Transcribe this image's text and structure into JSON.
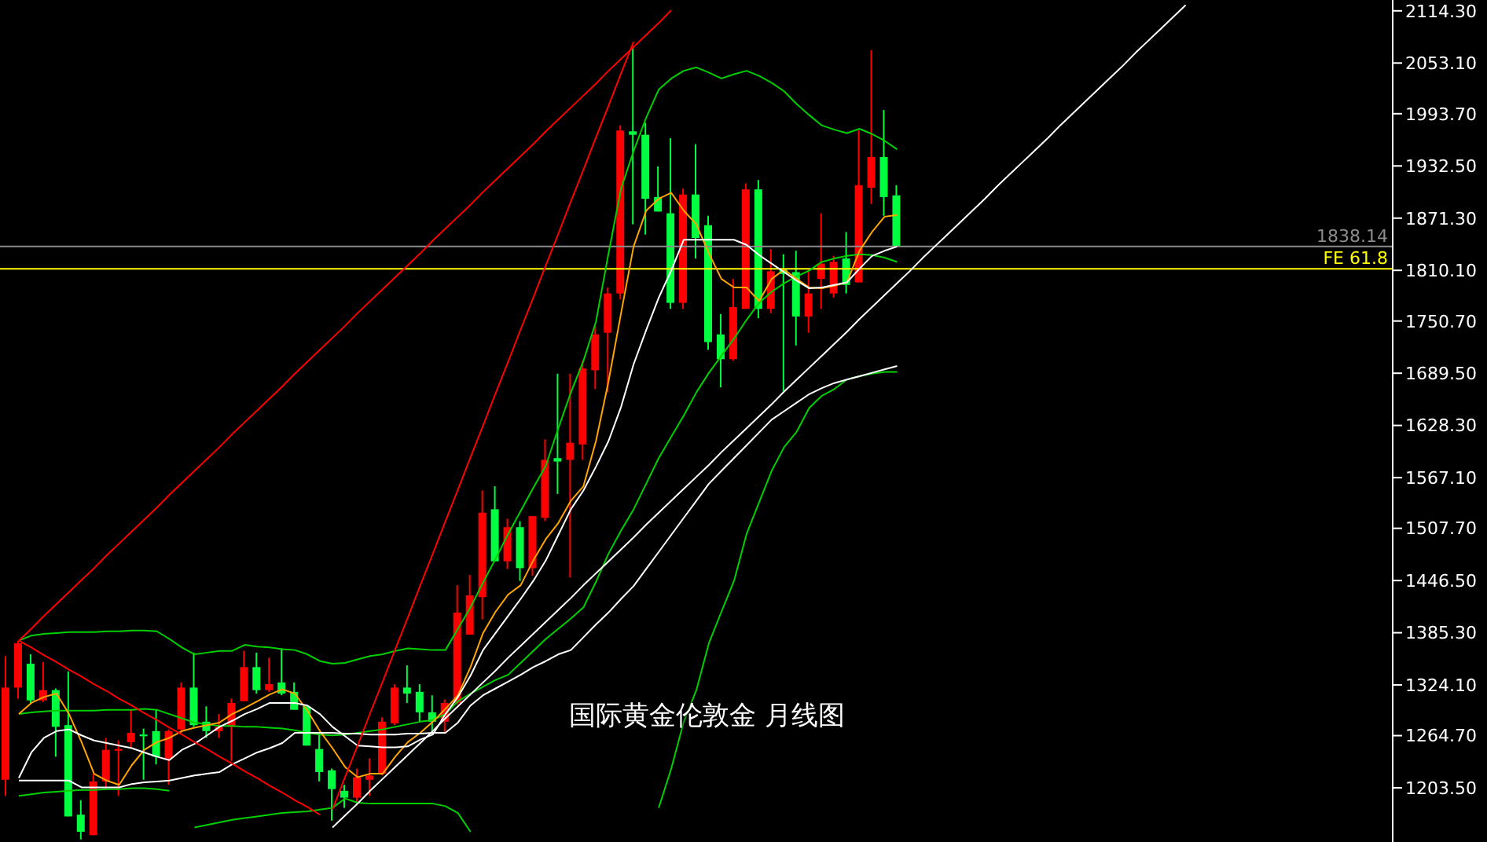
{
  "chart_data": {
    "type": "candlestick",
    "annotations": [
      "国际黄金伦敦金 月线图"
    ],
    "categories": [
      null,
      null,
      null,
      null,
      null,
      null,
      null,
      null,
      null,
      null,
      null,
      null,
      null,
      null,
      null,
      null,
      null,
      null,
      null,
      null,
      null,
      null,
      null,
      null,
      null,
      null,
      null,
      null,
      null,
      null,
      null,
      null,
      null,
      null,
      null,
      null,
      null,
      null,
      null,
      null,
      null,
      null,
      null,
      null,
      null,
      null,
      null,
      null,
      null,
      null,
      null,
      null,
      null,
      null,
      null,
      null,
      null,
      null,
      null,
      null,
      null,
      null,
      null,
      null,
      null,
      null,
      null,
      null,
      null,
      null,
      null,
      null,
      null,
      null,
      null,
      null,
      null,
      null,
      null,
      null,
      null,
      null,
      null,
      null,
      null,
      null,
      null,
      null,
      null,
      null,
      null,
      null,
      null,
      null,
      null,
      null,
      null,
      null,
      null,
      null,
      null,
      null,
      null,
      null,
      null,
      null,
      null,
      null,
      null,
      null,
      null
    ],
    "ohlc": [
      [
        1213,
        1358,
        1194,
        1321
      ],
      [
        1321,
        1376,
        1308,
        1373
      ],
      [
        1349,
        1360,
        1303,
        1306
      ],
      [
        1306,
        1351,
        1304,
        1318
      ],
      [
        1318,
        1320,
        1240,
        1275
      ],
      [
        1277,
        1340,
        1170,
        1170
      ],
      [
        1172,
        1189,
        1143,
        1152
      ],
      [
        1148,
        1220,
        1148,
        1211
      ],
      [
        1211,
        1262,
        1202,
        1248
      ],
      [
        1247,
        1259,
        1194,
        1249
      ],
      [
        1257,
        1295,
        1250,
        1268
      ],
      [
        1266,
        1273,
        1213,
        1264
      ],
      [
        1270,
        1295,
        1231,
        1240
      ],
      [
        1238,
        1272,
        1207,
        1270
      ],
      [
        1272,
        1327,
        1268,
        1321
      ],
      [
        1321,
        1362,
        1275,
        1277
      ],
      [
        1281,
        1299,
        1262,
        1270
      ],
      [
        1270,
        1290,
        1262,
        1275
      ],
      [
        1275,
        1308,
        1235,
        1303
      ],
      [
        1305,
        1364,
        1305,
        1345
      ],
      [
        1345,
        1362,
        1314,
        1318
      ],
      [
        1318,
        1356,
        1316,
        1325
      ],
      [
        1327,
        1367,
        1312,
        1314
      ],
      [
        1316,
        1327,
        1295,
        1295
      ],
      [
        1299,
        1299,
        1253,
        1253
      ],
      [
        1249,
        1266,
        1211,
        1222
      ],
      [
        1224,
        1226,
        1165,
        1202
      ],
      [
        1200,
        1207,
        1180,
        1192
      ],
      [
        1192,
        1226,
        1183,
        1216
      ],
      [
        1213,
        1238,
        1194,
        1218
      ],
      [
        1220,
        1286,
        1218,
        1281
      ],
      [
        1279,
        1325,
        1277,
        1321
      ],
      [
        1321,
        1347,
        1303,
        1314
      ],
      [
        1316,
        1325,
        1281,
        1292
      ],
      [
        1292,
        1312,
        1266,
        1281
      ],
      [
        1281,
        1307,
        1268,
        1303
      ],
      [
        1303,
        1441,
        1301,
        1409
      ],
      [
        1383,
        1453,
        1383,
        1429
      ],
      [
        1427,
        1552,
        1401,
        1526
      ],
      [
        1530,
        1557,
        1469,
        1469
      ],
      [
        1469,
        1519,
        1460,
        1509
      ],
      [
        1509,
        1516,
        1446,
        1461
      ],
      [
        1461,
        1522,
        1452,
        1522
      ],
      [
        1520,
        1612,
        1516,
        1588
      ],
      [
        1590,
        1689,
        1548,
        1586
      ],
      [
        1588,
        1689,
        1450,
        1608
      ],
      [
        1606,
        1704,
        1588,
        1695
      ],
      [
        1693,
        1746,
        1671,
        1735
      ],
      [
        1737,
        1790,
        1667,
        1783
      ],
      [
        1783,
        1980,
        1776,
        1974
      ],
      [
        1973,
        2072,
        1864,
        1969
      ],
      [
        1969,
        1983,
        1852,
        1894
      ],
      [
        1896,
        1932,
        1879,
        1879
      ],
      [
        1877,
        1965,
        1765,
        1772
      ],
      [
        1772,
        1906,
        1765,
        1899
      ],
      [
        1899,
        1958,
        1824,
        1848
      ],
      [
        1863,
        1874,
        1717,
        1726
      ],
      [
        1735,
        1759,
        1673,
        1706
      ],
      [
        1706,
        1800,
        1704,
        1767
      ],
      [
        1765,
        1912,
        1765,
        1905
      ],
      [
        1905,
        1916,
        1754,
        1765
      ],
      [
        1765,
        1835,
        1760,
        1809
      ],
      [
        1811,
        1829,
        1668,
        1806
      ],
      [
        1808,
        1833,
        1722,
        1756
      ],
      [
        1756,
        1811,
        1737,
        1783
      ],
      [
        1800,
        1877,
        1765,
        1818
      ],
      [
        1783,
        1827,
        1778,
        1820
      ],
      [
        1824,
        1855,
        1783,
        1793
      ],
      [
        1796,
        1974,
        1796,
        1910
      ],
      [
        1907,
        2068,
        1888,
        1943
      ],
      [
        1943,
        1998,
        1874,
        1896
      ],
      [
        1898,
        1910,
        1838,
        1838.14
      ],
      null,
      null,
      null,
      null,
      null,
      null,
      null,
      null,
      null,
      null,
      null,
      null,
      null,
      null,
      null,
      null,
      null,
      null,
      null,
      null,
      null,
      null,
      null,
      null,
      null,
      null,
      null,
      null,
      null,
      null,
      null,
      null,
      null,
      null,
      null,
      null,
      null,
      null,
      null
    ],
    "colors": [
      "#ff0000",
      "#ff0000",
      "#00ff40",
      "#ff0000",
      "#00ff40",
      "#00ff40",
      "#00ff40",
      "#ff0000",
      "#ff0000",
      "#ff0000",
      "#ff0000",
      "#00ff40",
      "#00ff40",
      "#ff0000",
      "#ff0000",
      "#00ff40",
      "#00ff40",
      "#ff0000",
      "#ff0000",
      "#ff0000",
      "#00ff40",
      "#ff0000",
      "#00ff40",
      "#00ff40",
      "#00ff40",
      "#00ff40",
      "#00ff40",
      "#00ff40",
      "#ff0000",
      "#ff0000",
      "#ff0000",
      "#ff0000",
      "#00ff40",
      "#00ff40",
      "#00ff40",
      "#ff0000",
      "#ff0000",
      "#ff0000",
      "#ff0000",
      "#00ff40",
      "#ff0000",
      "#00ff40",
      "#ff0000",
      "#ff0000",
      "#00ff40",
      "#ff0000",
      "#ff0000",
      "#ff0000",
      "#ff0000",
      "#ff0000",
      "#00ff40",
      "#00ff40",
      "#00ff40",
      "#00ff40",
      "#ff0000",
      "#00ff40",
      "#00ff40",
      "#00ff40",
      "#ff0000",
      "#ff0000",
      "#00ff40",
      "#ff0000",
      "#00ff40",
      "#00ff40",
      "#ff0000",
      "#ff0000",
      "#ff0000",
      "#00ff40",
      "#ff0000",
      "#ff0000",
      "#00ff40",
      "#00ff40",
      null,
      null,
      null,
      null,
      null,
      null,
      null,
      null,
      null,
      null,
      null,
      null,
      null,
      null,
      null,
      null,
      null,
      null,
      null,
      null,
      null,
      null,
      null,
      null,
      null,
      null,
      null,
      null,
      null,
      null,
      null,
      null,
      null,
      null,
      null,
      null,
      null,
      null,
      null
    ],
    "series": [
      {
        "type": "line",
        "color": "#00d000",
        "values": [
          null,
          1376,
          1382,
          1384,
          1385,
          1386,
          1386,
          1386,
          1387,
          1387,
          1388,
          1388,
          1387,
          1378,
          1368,
          1360,
          1362,
          1364,
          1364,
          1371,
          1369,
          1368,
          1366,
          1365,
          1360,
          1352,
          1349,
          1350,
          1354,
          1358,
          1360,
          1364,
          1367,
          1366,
          1365,
          1365,
          1390,
          1415,
          1444,
          1472,
          1501,
          1528,
          1555,
          1581,
          1625,
          1667,
          1704,
          1750,
          1830,
          1906,
          1950,
          1989,
          2022,
          2035,
          2044,
          2048,
          2042,
          2035,
          2040,
          2044,
          2038,
          2030,
          2020,
          2005,
          1992,
          1980,
          1975,
          1971,
          1976,
          1970,
          1962,
          1952,
          null,
          null,
          null,
          null,
          null,
          null,
          null,
          null,
          null,
          null,
          null,
          null,
          null,
          null,
          null,
          null,
          null,
          null,
          null,
          null,
          null,
          null,
          null,
          null,
          null,
          null,
          null,
          null,
          null,
          null,
          null,
          null,
          null,
          null,
          null,
          null,
          null,
          null,
          null
        ]
      },
      {
        "type": "line",
        "color": "#00d000",
        "values": [
          null,
          1290,
          1292,
          1293,
          1294,
          1294,
          1294,
          1294,
          1295,
          1295,
          1295,
          1296,
          1295,
          1290,
          1285,
          1280,
          1278,
          1276,
          1276,
          1275,
          1275,
          1274,
          1273,
          1271,
          1268,
          1266,
          1265,
          1266,
          1268,
          1270,
          1272,
          1275,
          1278,
          1281,
          1283,
          1290,
          1305,
          1314,
          1322,
          1330,
          1336,
          1350,
          1364,
          1378,
          1390,
          1402,
          1415,
          1445,
          1478,
          1505,
          1530,
          1560,
          1590,
          1615,
          1640,
          1667,
          1690,
          1710,
          1730,
          1752,
          1772,
          1785,
          1795,
          1803,
          1810,
          1820,
          1824,
          1827,
          1829,
          1828,
          1825,
          1820,
          null,
          null,
          null,
          null,
          null,
          null,
          null,
          null,
          null,
          null,
          null,
          null,
          null,
          null,
          null,
          null,
          null,
          null,
          null,
          null,
          null,
          null,
          null,
          null,
          null,
          null,
          null,
          null,
          null,
          null,
          null,
          null,
          null,
          null,
          null,
          null,
          null,
          null,
          null
        ]
      },
      {
        "type": "line",
        "color": "#00d000",
        "values": [
          null,
          1194,
          1196,
          1198,
          1199,
          1200,
          1201,
          1201,
          1202,
          1202,
          1203,
          1203,
          1202,
          1200,
          null,
          1157,
          1160,
          1163,
          1166,
          1168,
          1170,
          1172,
          1174,
          1175,
          1176,
          1178,
          1180,
          1191,
          1186,
          1185,
          1185,
          1185,
          1185,
          1185,
          1185,
          1182,
          1174,
          1152,
          null,
          null,
          null,
          null,
          null,
          null,
          null,
          null,
          null,
          null,
          null,
          null,
          null,
          null,
          1180,
          1226,
          1281,
          1318,
          1373,
          1410,
          1446,
          1501,
          1538,
          1575,
          1603,
          1621,
          1649,
          1663,
          1671,
          1682,
          1686,
          1689,
          1691,
          1691,
          null,
          null,
          null,
          null,
          null,
          null,
          null,
          null,
          null,
          null,
          null,
          null,
          null,
          null,
          null,
          null,
          null,
          null,
          null,
          null,
          null,
          null,
          null,
          null,
          null,
          null,
          null,
          null,
          null,
          null,
          null,
          null,
          null,
          null,
          null,
          null,
          null,
          null,
          null
        ]
      },
      {
        "type": "line",
        "color": "#ffa500",
        "values": [
          null,
          1290,
          1303,
          1310,
          1314,
          1290,
          1257,
          1220,
          1212,
          1207,
          1230,
          1248,
          1257,
          1262,
          1270,
          1274,
          1277,
          1280,
          1290,
          1297,
          1305,
          1313,
          1319,
          1314,
          1294,
          1270,
          1250,
          1228,
          1216,
          1220,
          1220,
          1240,
          1257,
          1268,
          1281,
          1296,
          1312,
          1345,
          1385,
          1410,
          1430,
          1441,
          1470,
          1495,
          1514,
          1540,
          1557,
          1610,
          1680,
          1760,
          1838,
          1880,
          1894,
          1901,
          1880,
          1864,
          1830,
          1800,
          1790,
          1790,
          1774,
          1800,
          1811,
          1800,
          1790,
          1789,
          1792,
          1796,
          1833,
          1855,
          1873,
          1875,
          null,
          null,
          null,
          null,
          null,
          null,
          null,
          null,
          null,
          null,
          null,
          null,
          null,
          null,
          null,
          null,
          null,
          null,
          null,
          null,
          null,
          null,
          null,
          null,
          null,
          null,
          null,
          null,
          null,
          null,
          null,
          null,
          null,
          null,
          null,
          null,
          null,
          null,
          null
        ]
      },
      {
        "type": "line",
        "color": "#ffffff",
        "values": [
          null,
          1215,
          1245,
          1262,
          1270,
          1272,
          1265,
          1259,
          1256,
          1253,
          1250,
          1245,
          1240,
          1236,
          1248,
          1255,
          1265,
          1275,
          1282,
          1290,
          1296,
          1303,
          1303,
          1303,
          1300,
          1290,
          1275,
          1264,
          1253,
          1252,
          1251,
          1251,
          1252,
          1260,
          1266,
          1290,
          1310,
          1335,
          1365,
          1385,
          1405,
          1425,
          1446,
          1470,
          1500,
          1530,
          1552,
          1580,
          1610,
          1650,
          1700,
          1740,
          1778,
          1810,
          1846,
          1846,
          1846,
          1846,
          1846,
          1840,
          1828,
          1818,
          1808,
          1798,
          1789,
          1790,
          1793,
          1796,
          1812,
          1827,
          1833,
          1838,
          null,
          null,
          null,
          null,
          null,
          null,
          null,
          null,
          null,
          null,
          null,
          null,
          null,
          null,
          null,
          null,
          null,
          null,
          null,
          null,
          null,
          null,
          null,
          null,
          null,
          null,
          null,
          null,
          null,
          null,
          null,
          null,
          null,
          null,
          null,
          null,
          null,
          null,
          null
        ]
      },
      {
        "type": "line",
        "color": "#ffffff",
        "values": [
          null,
          1212,
          1212,
          1212,
          1212,
          1212,
          1204,
          1204,
          1204,
          1204,
          1208,
          1210,
          1211,
          1212,
          1215,
          1218,
          1220,
          1222,
          1231,
          1238,
          1245,
          1250,
          1256,
          1268,
          1268,
          1268,
          1268,
          1267,
          1267,
          1266,
          1266,
          1266,
          1267,
          1267,
          1268,
          1268,
          1280,
          1300,
          1312,
          1320,
          1328,
          1336,
          1345,
          1352,
          1360,
          1365,
          1380,
          1395,
          1409,
          1425,
          1440,
          1460,
          1480,
          1500,
          1520,
          1540,
          1560,
          1575,
          1590,
          1605,
          1620,
          1635,
          1645,
          1655,
          1665,
          1672,
          1678,
          1682,
          1686,
          1690,
          1694,
          1698,
          null,
          null,
          null,
          null,
          null,
          null,
          null,
          null,
          null,
          null,
          null,
          null,
          null,
          null,
          null,
          null,
          null,
          null,
          null,
          null,
          null,
          null,
          null,
          null,
          null,
          null,
          null,
          null,
          null,
          null,
          null,
          null,
          null,
          null,
          null,
          null,
          null,
          null,
          null
        ]
      },
      {
        "type": "line",
        "color": "#ff0000",
        "values": [
          null,
          1376,
          1368,
          1359,
          1351,
          1342,
          1334,
          1325,
          1317,
          1308,
          1300,
          1291,
          1283,
          1274,
          1266,
          1257,
          1249,
          1240,
          1232,
          1223,
          1215,
          1206,
          1198,
          1189,
          1181,
          1172,
          null,
          null,
          null,
          null,
          null,
          null,
          null,
          null,
          null,
          null,
          null,
          null,
          null,
          null,
          null,
          null,
          null,
          null,
          null,
          null,
          null,
          null,
          null,
          null,
          null,
          null,
          null,
          null,
          null,
          null,
          null,
          null,
          null,
          null,
          null,
          null,
          null,
          null,
          null,
          null,
          null,
          null,
          null,
          null,
          null,
          null,
          null,
          null,
          null,
          null,
          null,
          null,
          null,
          null,
          null,
          null,
          null,
          null,
          null,
          null,
          null,
          null,
          null,
          null,
          null,
          null,
          null,
          null,
          null,
          null,
          null,
          null,
          null,
          null,
          null,
          null,
          null,
          null,
          null,
          null,
          null,
          null,
          null,
          null,
          null
        ]
      },
      {
        "type": "line",
        "color": "#ff0000",
        "values": [
          null,
          1376,
          1390,
          1405,
          1419,
          1433,
          1447,
          1461,
          1476,
          1490,
          1504,
          1518,
          1532,
          1547,
          1561,
          1575,
          1589,
          1603,
          1618,
          1632,
          1646,
          1660,
          1674,
          1689,
          1703,
          1717,
          1731,
          1745,
          1760,
          1774,
          1788,
          1802,
          1816,
          1830,
          1845,
          1859,
          1873,
          1887,
          1902,
          1916,
          1930,
          1944,
          1958,
          1973,
          1987,
          2001,
          2015,
          2029,
          2044,
          2058,
          2072,
          2086,
          2100,
          2115,
          null,
          null,
          null,
          null,
          null,
          null,
          null,
          null,
          null,
          null,
          null,
          null,
          null,
          null,
          null,
          null,
          null,
          null,
          null,
          null,
          null,
          null,
          null,
          null,
          null,
          null,
          null,
          null,
          null,
          null,
          null,
          null,
          null,
          null,
          null,
          null,
          null,
          null,
          null,
          null,
          null,
          null,
          null,
          null,
          null,
          null,
          null,
          null,
          null,
          null,
          null,
          null,
          null,
          null,
          null,
          null,
          null
        ]
      },
      {
        "type": "line",
        "color": "#ff0000",
        "values": [
          null,
          null,
          null,
          null,
          null,
          null,
          null,
          null,
          null,
          null,
          null,
          null,
          null,
          null,
          null,
          null,
          null,
          null,
          null,
          null,
          null,
          null,
          null,
          null,
          null,
          null,
          1178,
          1216,
          1253,
          1291,
          1328,
          1366,
          1403,
          1441,
          1478,
          1516,
          1553,
          1591,
          1628,
          1666,
          1703,
          1741,
          1778,
          1816,
          1853,
          1891,
          1928,
          1966,
          2003,
          2041,
          2078,
          null,
          null,
          null,
          null,
          null,
          null,
          null,
          null,
          null,
          null,
          null,
          null,
          null,
          null,
          null,
          null,
          null,
          null,
          null,
          null,
          null,
          null,
          null,
          null,
          null,
          null,
          null,
          null,
          null,
          null,
          null,
          null,
          null,
          null,
          null,
          null,
          null,
          null,
          null,
          null,
          null,
          null,
          null,
          null,
          null,
          null,
          null,
          null,
          null,
          null,
          null,
          null,
          null,
          null,
          null,
          null,
          null,
          null,
          null,
          null
        ]
      },
      {
        "type": "line",
        "color": "#ffffff",
        "values": [
          null,
          null,
          null,
          null,
          null,
          null,
          null,
          null,
          null,
          null,
          null,
          null,
          null,
          null,
          null,
          null,
          null,
          null,
          null,
          null,
          null,
          null,
          null,
          null,
          null,
          null,
          1157,
          1171,
          1185,
          1200,
          1214,
          1228,
          1242,
          1256,
          1270,
          1285,
          1299,
          1313,
          1327,
          1341,
          1356,
          1370,
          1384,
          1398,
          1412,
          1426,
          1441,
          1455,
          1469,
          1483,
          1497,
          1512,
          1526,
          1540,
          1554,
          1568,
          1582,
          1597,
          1611,
          1625,
          1639,
          1653,
          1668,
          1682,
          1696,
          1710,
          1724,
          1738,
          1753,
          1767,
          1781,
          1795,
          1809,
          1824,
          1838,
          1852,
          1866,
          1880,
          1894,
          1909,
          1923,
          1937,
          1951,
          1965,
          1980,
          1994,
          2008,
          2022,
          2036,
          2050,
          2065,
          2079,
          2093,
          2107,
          2121,
          null,
          null,
          null,
          null,
          null,
          null,
          null,
          null,
          null,
          null,
          null,
          null,
          null,
          null,
          null,
          null
        ]
      }
    ],
    "ylim": [
      1140,
      2127
    ],
    "yticks": [
      {
        "value": 2114.3,
        "label": "2114.30"
      },
      {
        "value": 2053.1,
        "label": "2053.10"
      },
      {
        "value": 1993.7,
        "label": "1993.70"
      },
      {
        "value": 1932.5,
        "label": "1932.50"
      },
      {
        "value": 1871.3,
        "label": "1871.30"
      },
      {
        "value": 1810.1,
        "label": "1810.10"
      },
      {
        "value": 1750.7,
        "label": "1750.70"
      },
      {
        "value": 1689.5,
        "label": "1689.50"
      },
      {
        "value": 1628.3,
        "label": "1628.30"
      },
      {
        "value": 1567.1,
        "label": "1567.10"
      },
      {
        "value": 1507.7,
        "label": "1507.70"
      },
      {
        "value": 1446.5,
        "label": "1446.50"
      },
      {
        "value": 1385.3,
        "label": "1385.30"
      },
      {
        "value": 1324.1,
        "label": "1324.10"
      },
      {
        "value": 1264.7,
        "label": "1264.70"
      },
      {
        "value": 1203.5,
        "label": "1203.50"
      }
    ],
    "ref_lines": [
      {
        "axis": "y",
        "value": 1838.14,
        "label": "1838.14",
        "color": "#8c8c8c"
      },
      {
        "axis": "y",
        "value": 1812,
        "label": "FE 61.8",
        "color": "#ffff00"
      }
    ],
    "tick_labels": "y",
    "grid": false
  }
}
